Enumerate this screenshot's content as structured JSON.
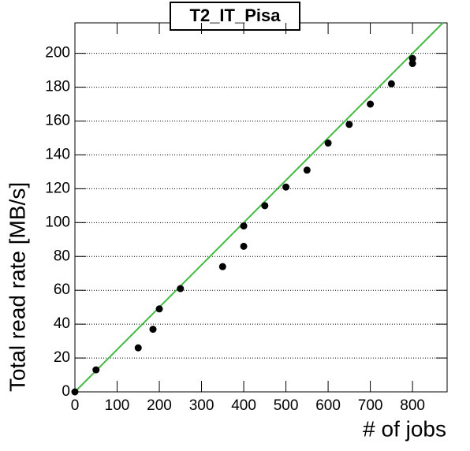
{
  "chart_data": {
    "type": "scatter",
    "title": "T2_IT_Pisa",
    "x_label": "# of jobs",
    "y_label": "Total read rate [MB/s]",
    "x": [
      0,
      50,
      150,
      185,
      200,
      250,
      350,
      400,
      400,
      450,
      500,
      550,
      600,
      650,
      700,
      750,
      800,
      800
    ],
    "values": [
      0,
      13,
      26,
      37,
      49,
      61,
      74,
      86,
      98,
      110,
      121,
      131,
      147,
      158,
      170,
      182,
      194,
      197
    ],
    "color": "#000000",
    "fit": {
      "slope": 0.25,
      "intercept": 0,
      "color": "#44bb44"
    },
    "xlim": [
      0,
      882
    ],
    "xticks": [
      0,
      100,
      200,
      300,
      400,
      500,
      600,
      700,
      800
    ],
    "ylim": [
      0,
      218
    ],
    "yticks": [
      0,
      20,
      40,
      60,
      80,
      100,
      120,
      140,
      160,
      180,
      200
    ],
    "grid": true
  }
}
